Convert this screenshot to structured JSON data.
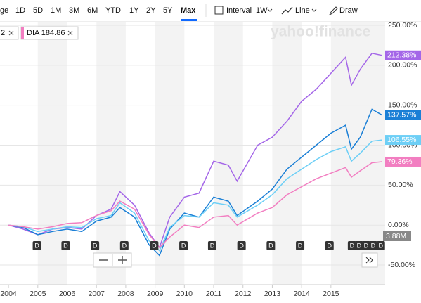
{
  "toolbar": {
    "ranges": [
      "ge",
      "1D",
      "5D",
      "1M",
      "3M",
      "6M",
      "YTD",
      "1Y",
      "2Y",
      "5Y",
      "Max"
    ],
    "selected_range_index": 10,
    "interval_label": "Interval",
    "interval_value": "1W",
    "chart_type": "Line",
    "draw": "Draw"
  },
  "chips": [
    "2",
    "DIA 184.86"
  ],
  "watermark": "yahoo!finance",
  "chart_data": {
    "type": "line",
    "x": [
      2004.0,
      2004.5,
      2005.0,
      2005.5,
      2006.0,
      2006.5,
      2007.0,
      2007.5,
      2007.8,
      2008.3,
      2008.8,
      2009.15,
      2009.5,
      2010.0,
      2010.5,
      2011.0,
      2011.5,
      2011.8,
      2012.5,
      2013.0,
      2013.5,
      2014.0,
      2014.5,
      2015.0,
      2015.5,
      2015.7,
      2016.0,
      2016.4,
      2016.75
    ],
    "series": [
      {
        "color": "#a466e8",
        "values": [
          0,
          -5,
          -12,
          -5,
          -3,
          -5,
          12,
          20,
          42,
          25,
          -10,
          -28,
          10,
          35,
          40,
          80,
          75,
          55,
          100,
          110,
          130,
          155,
          170,
          190,
          210,
          175,
          195,
          215,
          212.38
        ],
        "end_label": "212.38%"
      },
      {
        "color": "#1a7fd6",
        "values": [
          0,
          -3,
          -12,
          -8,
          -5,
          -8,
          5,
          10,
          22,
          10,
          -25,
          -38,
          -5,
          15,
          10,
          35,
          30,
          12,
          30,
          45,
          70,
          85,
          100,
          115,
          125,
          95,
          110,
          145,
          137.57
        ],
        "end_label": "137.57%"
      },
      {
        "color": "#6dcff6",
        "values": [
          0,
          -2,
          -8,
          -5,
          -2,
          -3,
          8,
          12,
          28,
          15,
          -20,
          -32,
          -3,
          12,
          10,
          28,
          25,
          10,
          25,
          38,
          58,
          70,
          82,
          92,
          98,
          80,
          90,
          105,
          106.55
        ],
        "end_label": "106.55%"
      },
      {
        "color": "#f27ec1",
        "values": [
          0,
          -2,
          -5,
          -2,
          2,
          3,
          12,
          18,
          30,
          20,
          -12,
          -28,
          -15,
          0,
          -3,
          10,
          12,
          0,
          15,
          22,
          38,
          48,
          58,
          65,
          72,
          60,
          68,
          78,
          79.36
        ],
        "end_label": "79.36%"
      }
    ],
    "xlim": [
      2003.71,
      2016.85
    ],
    "xticks": [
      2004,
      2005,
      2006,
      2007,
      2008,
      2009,
      2010,
      2011,
      2012,
      2013,
      2014,
      2015
    ],
    "ylim": [
      -74.6,
      254.4
    ],
    "yticks": [
      {
        "value": 250,
        "label": "250.00%"
      },
      {
        "value": 200,
        "label": "200.00%"
      },
      {
        "value": 150,
        "label": "150.00%"
      },
      {
        "value": 100,
        "label": "100.00%"
      },
      {
        "value": 50,
        "label": "50.00%"
      },
      {
        "value": 0,
        "label": "0.00%"
      },
      {
        "value": -50,
        "label": "-50.00%"
      }
    ],
    "grid": true,
    "dividends": [
      2004.97,
      2005.95,
      2006.95,
      2007.95,
      2008.97,
      2009.97,
      2010.95,
      2011.95,
      2012.95,
      2013.95,
      2014.95,
      2015.72,
      2015.96,
      2016.2,
      2016.44,
      2016.7
    ],
    "dividend_label": "D",
    "volume_label": "3.88M"
  }
}
